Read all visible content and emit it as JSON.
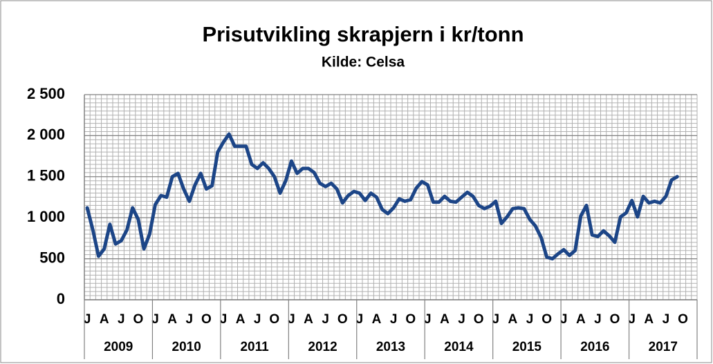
{
  "chart_data": {
    "type": "line",
    "title": "Prisutvikling skrapjern i kr/tonn",
    "subtitle": "Kilde: Celsa",
    "categories": [
      "J",
      null,
      null,
      "A",
      null,
      null,
      "J",
      null,
      null,
      "O",
      null,
      null,
      "J",
      null,
      null,
      "A",
      null,
      null,
      "J",
      null,
      null,
      "O",
      null,
      null,
      "J",
      null,
      null,
      "A",
      null,
      null,
      "J",
      null,
      null,
      "O",
      null,
      null,
      "J",
      null,
      null,
      "A",
      null,
      null,
      "J",
      null,
      null,
      "O",
      null,
      null,
      "J",
      null,
      null,
      "A",
      null,
      null,
      "J",
      null,
      null,
      "O",
      null,
      null,
      "J",
      null,
      null,
      "A",
      null,
      null,
      "J",
      null,
      null,
      "O",
      null,
      null,
      "J",
      null,
      null,
      "A",
      null,
      null,
      "J",
      null,
      null,
      "O",
      null,
      null,
      "J",
      null,
      null,
      "A",
      null,
      null,
      "J",
      null,
      null,
      "O",
      null,
      null,
      "J",
      null,
      null,
      "A",
      null,
      null,
      "J",
      null,
      null,
      "O",
      null,
      null
    ],
    "years": [
      "2009",
      "2010",
      "2011",
      "2012",
      "2013",
      "2014",
      "2015",
      "2016",
      "2017"
    ],
    "color": "#1c4587",
    "values": [
      1120,
      850,
      530,
      620,
      920,
      680,
      720,
      850,
      1120,
      980,
      620,
      800,
      1160,
      1270,
      1250,
      1500,
      1540,
      1350,
      1200,
      1400,
      1540,
      1350,
      1390,
      1800,
      1920,
      2020,
      1870,
      1870,
      1870,
      1650,
      1600,
      1670,
      1600,
      1500,
      1300,
      1450,
      1690,
      1540,
      1600,
      1600,
      1550,
      1420,
      1380,
      1420,
      1350,
      1180,
      1270,
      1320,
      1300,
      1210,
      1300,
      1250,
      1100,
      1050,
      1120,
      1230,
      1200,
      1220,
      1360,
      1440,
      1400,
      1190,
      1190,
      1260,
      1200,
      1190,
      1250,
      1310,
      1260,
      1150,
      1110,
      1140,
      1200,
      930,
      1010,
      1110,
      1120,
      1110,
      980,
      900,
      760,
      520,
      500,
      560,
      610,
      540,
      600,
      1020,
      1150,
      790,
      770,
      840,
      780,
      700,
      1010,
      1060,
      1210,
      1010,
      1260,
      1180,
      1200,
      1180,
      1260,
      1460,
      1500,
      null,
      null,
      null
    ],
    "ylim": [
      0,
      2500
    ],
    "yticks": [
      0,
      {
        "value": 500,
        "label": "500"
      },
      {
        "value": 1000,
        "label": "1 000"
      },
      {
        "value": 1500,
        "label": "1 500"
      },
      {
        "value": 2000,
        "label": "2 000"
      },
      {
        "value": 2500,
        "label": "2 500"
      }
    ],
    "grid": true
  }
}
